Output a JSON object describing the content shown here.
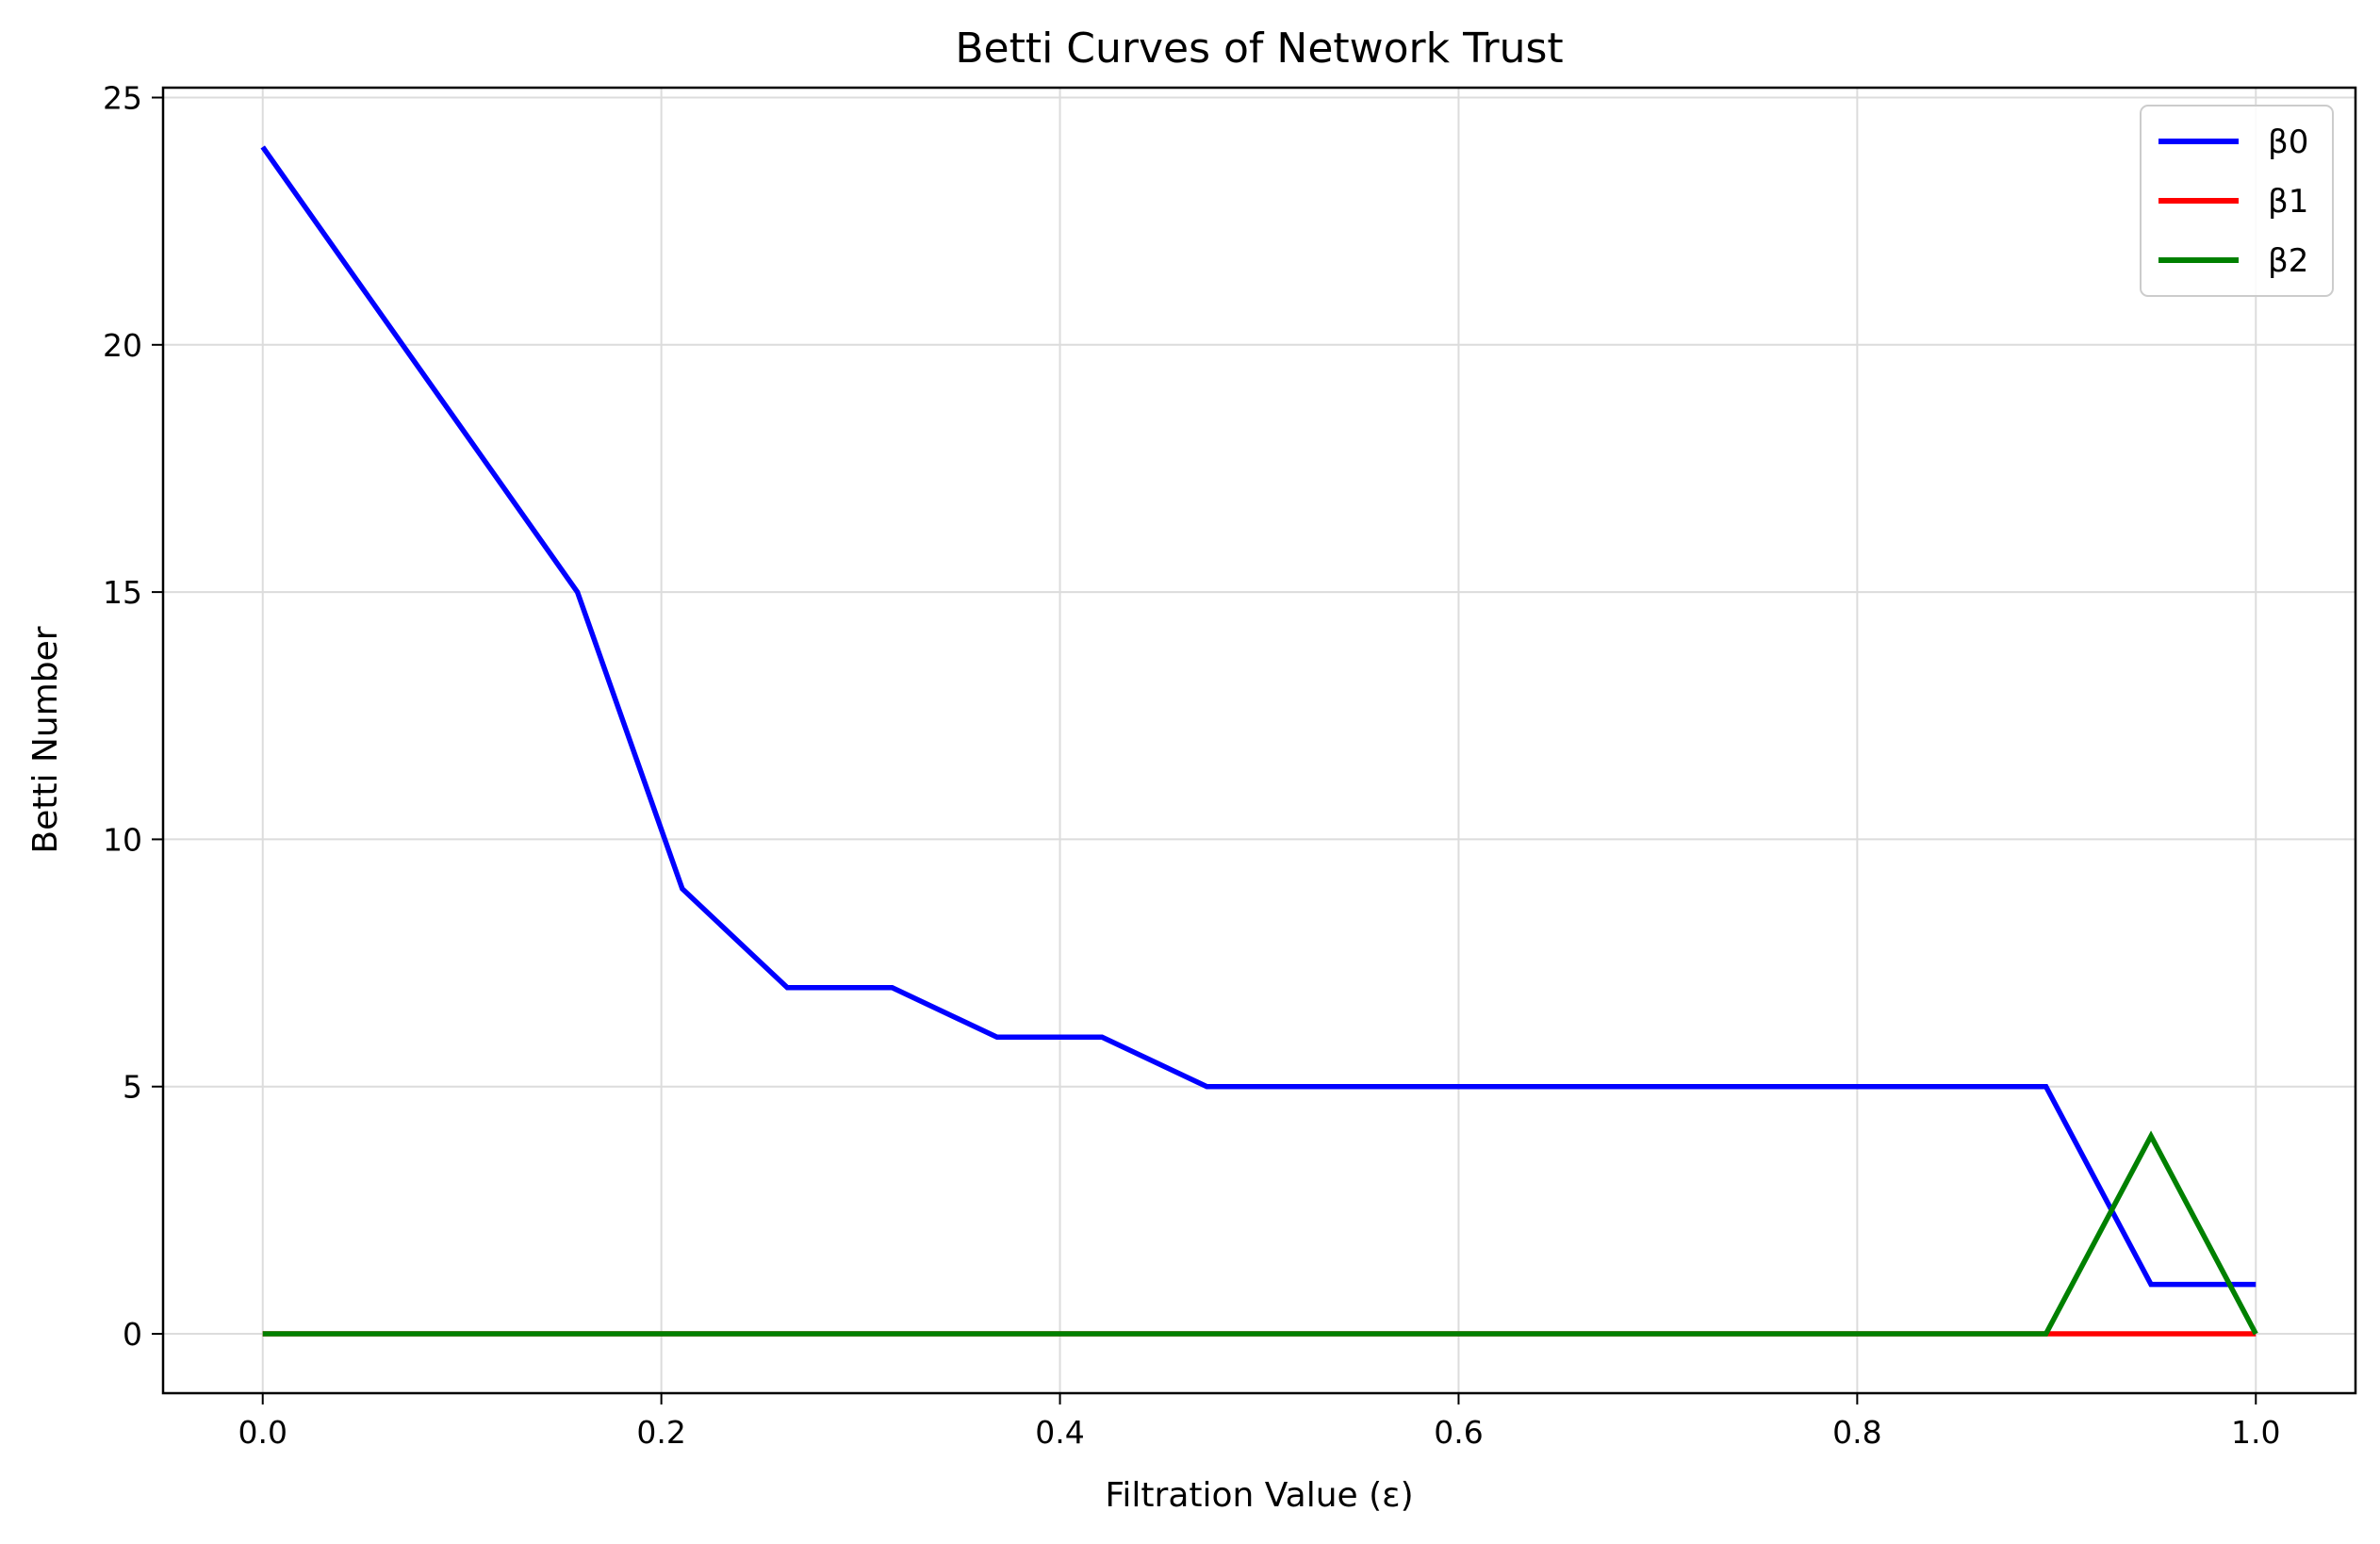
{
  "chart_data": {
    "type": "line",
    "title": "Betti Curves of Network Trust",
    "xlabel": "Filtration Value (ε)",
    "ylabel": "Betti Number",
    "xlim": [
      -0.05,
      1.05
    ],
    "ylim": [
      -1.2,
      25.2
    ],
    "xticks": [
      0.0,
      0.2,
      0.4,
      0.6,
      0.8,
      1.0
    ],
    "xtick_labels": [
      "0.0",
      "0.2",
      "0.4",
      "0.6",
      "0.8",
      "1.0"
    ],
    "yticks": [
      0,
      5,
      10,
      15,
      20,
      25
    ],
    "ytick_labels": [
      "0",
      "5",
      "10",
      "15",
      "20",
      "25"
    ],
    "grid": true,
    "legend_position": "top-right",
    "x": [
      0.0,
      0.0526,
      0.1053,
      0.1579,
      0.2105,
      0.2632,
      0.3158,
      0.3684,
      0.4211,
      0.4737,
      0.5263,
      0.5789,
      0.6316,
      0.6842,
      0.7368,
      0.7895,
      0.8421,
      0.8947,
      0.9474,
      1.0
    ],
    "series": [
      {
        "name": "β0",
        "color": "#0000ff",
        "values": [
          24,
          21,
          18,
          15,
          9,
          7,
          7,
          6,
          6,
          5,
          5,
          5,
          5,
          5,
          5,
          5,
          5,
          5,
          1,
          1
        ]
      },
      {
        "name": "β1",
        "color": "#ff0000",
        "values": [
          0,
          0,
          0,
          0,
          0,
          0,
          0,
          0,
          0,
          0,
          0,
          0,
          0,
          0,
          0,
          0,
          0,
          0,
          0,
          0
        ]
      },
      {
        "name": "β2",
        "color": "#008000",
        "values": [
          0,
          0,
          0,
          0,
          0,
          0,
          0,
          0,
          0,
          0,
          0,
          0,
          0,
          0,
          0,
          0,
          0,
          0,
          4,
          0
        ]
      }
    ]
  }
}
